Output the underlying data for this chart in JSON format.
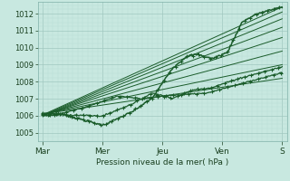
{
  "xlabel": "Pression niveau de la mer( hPa )",
  "xlim": [
    0,
    100
  ],
  "ylim": [
    1004.5,
    1012.7
  ],
  "yticks": [
    1005,
    1006,
    1007,
    1008,
    1009,
    1010,
    1011,
    1012
  ],
  "xtick_positions": [
    2,
    26,
    50,
    74,
    98
  ],
  "xtick_labels": [
    "Mar",
    "Mer",
    "Jeu",
    "Ven",
    "S"
  ],
  "bg_color": "#c8e8e0",
  "grid_major_color": "#a0c8c0",
  "grid_minor_color": "#b8dcd4",
  "line_color": "#1a5c2a",
  "line_width": 0.7
}
